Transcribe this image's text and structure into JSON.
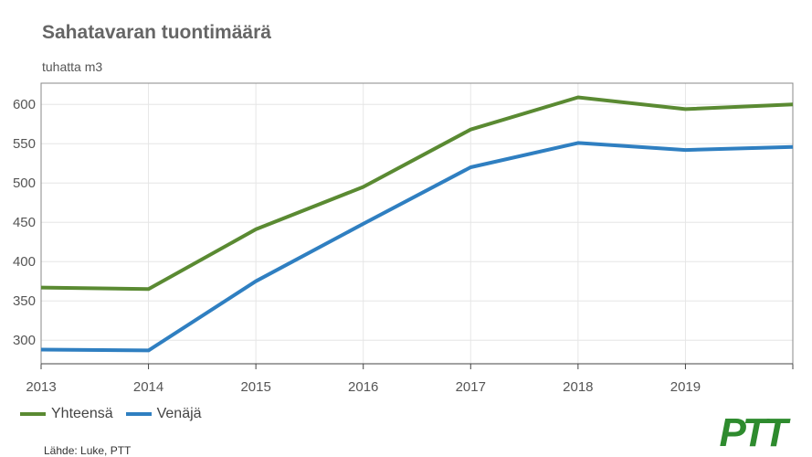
{
  "title": "Sahatavaran tuontimäärä",
  "subtitle": "tuhatta m3",
  "source": "Lähde: Luke, PTT",
  "logo": {
    "text": "PTT",
    "color": "#2e8b2e"
  },
  "chart_data": {
    "type": "line",
    "x": [
      "2013",
      "2014",
      "2015",
      "2016",
      "2017",
      "2018",
      "2019"
    ],
    "xlim": [
      2013,
      2020
    ],
    "ylim": [
      270,
      627
    ],
    "yticks": [
      300,
      350,
      400,
      450,
      500,
      550,
      600
    ],
    "grid": true,
    "legend": "bottom-left",
    "series": [
      {
        "name": "Yhteensä",
        "color": "#5a8a32",
        "points": [
          [
            2013,
            367
          ],
          [
            2014,
            365
          ],
          [
            2015,
            441
          ],
          [
            2016,
            495
          ],
          [
            2017,
            568
          ],
          [
            2018,
            609
          ],
          [
            2019,
            594
          ],
          [
            2020,
            600
          ]
        ]
      },
      {
        "name": "Venäjä",
        "color": "#2f7fc1",
        "points": [
          [
            2013,
            288
          ],
          [
            2014,
            287
          ],
          [
            2015,
            375
          ],
          [
            2016,
            448
          ],
          [
            2017,
            520
          ],
          [
            2018,
            551
          ],
          [
            2019,
            542
          ],
          [
            2020,
            546
          ]
        ]
      }
    ]
  }
}
